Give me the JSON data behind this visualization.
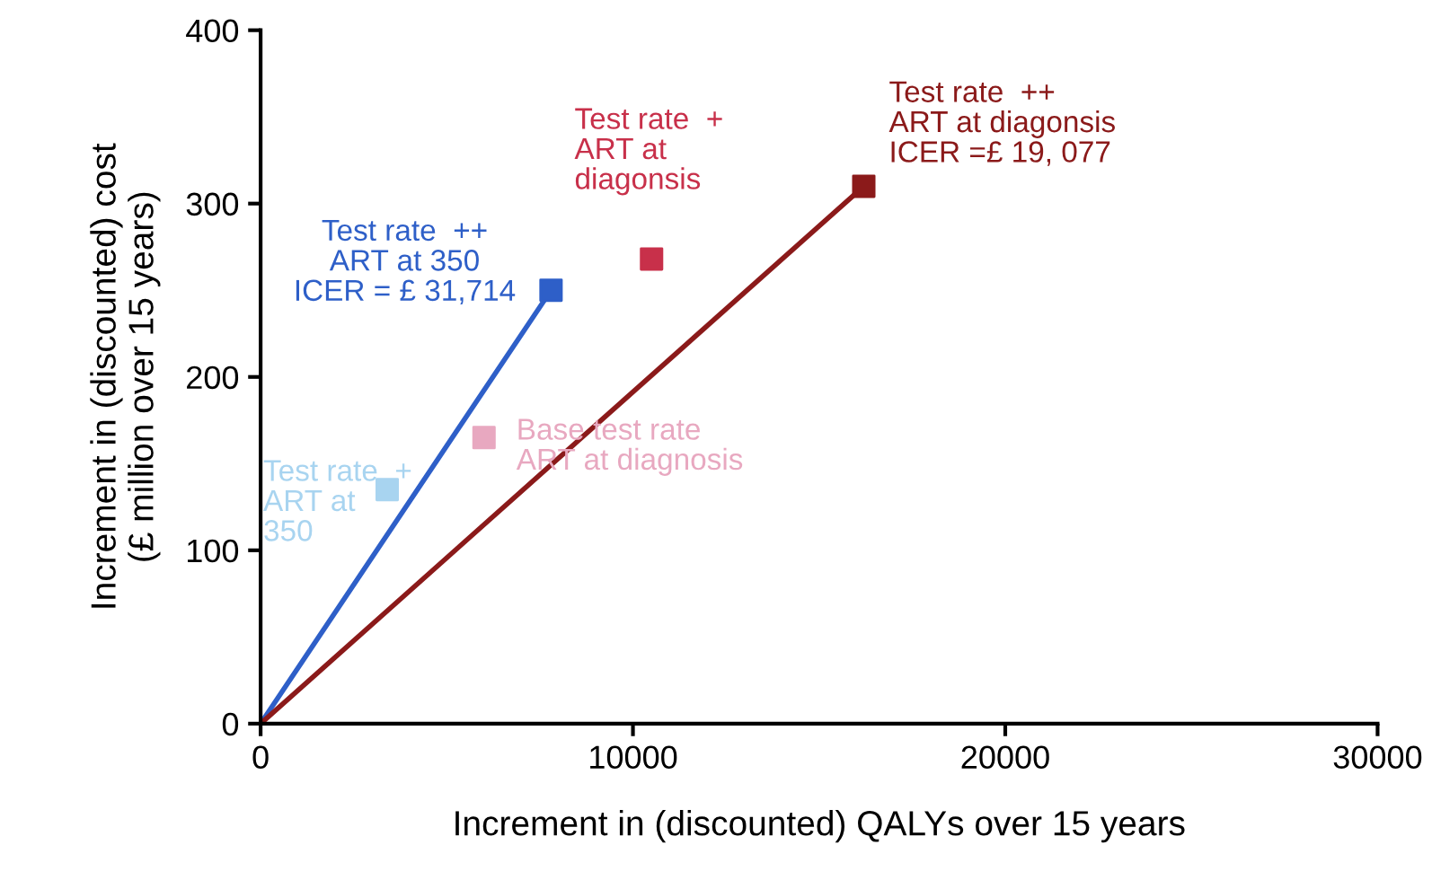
{
  "chart_data": {
    "type": "scatter",
    "xlabel": "Increment in (discounted) QALYs over 15 years",
    "ylabel": "Increment in (discounted) cost\n(£ million over 15 years)",
    "xlim": [
      0,
      30000
    ],
    "xticks": [
      0,
      10000,
      20000,
      30000
    ],
    "ylim": [
      0,
      400
    ],
    "yticks": [
      0,
      100,
      200,
      300,
      400
    ],
    "grid": false,
    "series": [
      {
        "x": [
          3400,
          6000,
          7800,
          10500,
          16200
        ],
        "values": [
          135,
          165,
          250,
          268,
          310
        ],
        "colors": [
          "#a8d4f0",
          "#e8a8c0",
          "#2e5fc8",
          "#c8304a",
          "#8b1a1a"
        ],
        "marker": "square"
      },
      {
        "type": "line",
        "x": [
          0,
          7800
        ],
        "values": [
          0,
          250
        ],
        "color": "#2e5fc8"
      },
      {
        "type": "line",
        "x": [
          0,
          16200
        ],
        "values": [
          0,
          310
        ],
        "color": "#8b1a1a"
      }
    ],
    "annotations": [
      {
        "text": "Test rate  +\nART at\n350",
        "x": 3400,
        "y": 135
      },
      {
        "text": "Base test rate\nART at diagnosis",
        "x": 6000,
        "y": 165
      },
      "Test rate  ++\nART at 350\nICER = £ 31,714",
      "Test rate  +\nART at\ndiagonsis",
      {
        "text": "Test rate  ++\nART at diagonsis\nICER =£ 19, 077",
        "x": 16200,
        "y": 310
      }
    ]
  }
}
